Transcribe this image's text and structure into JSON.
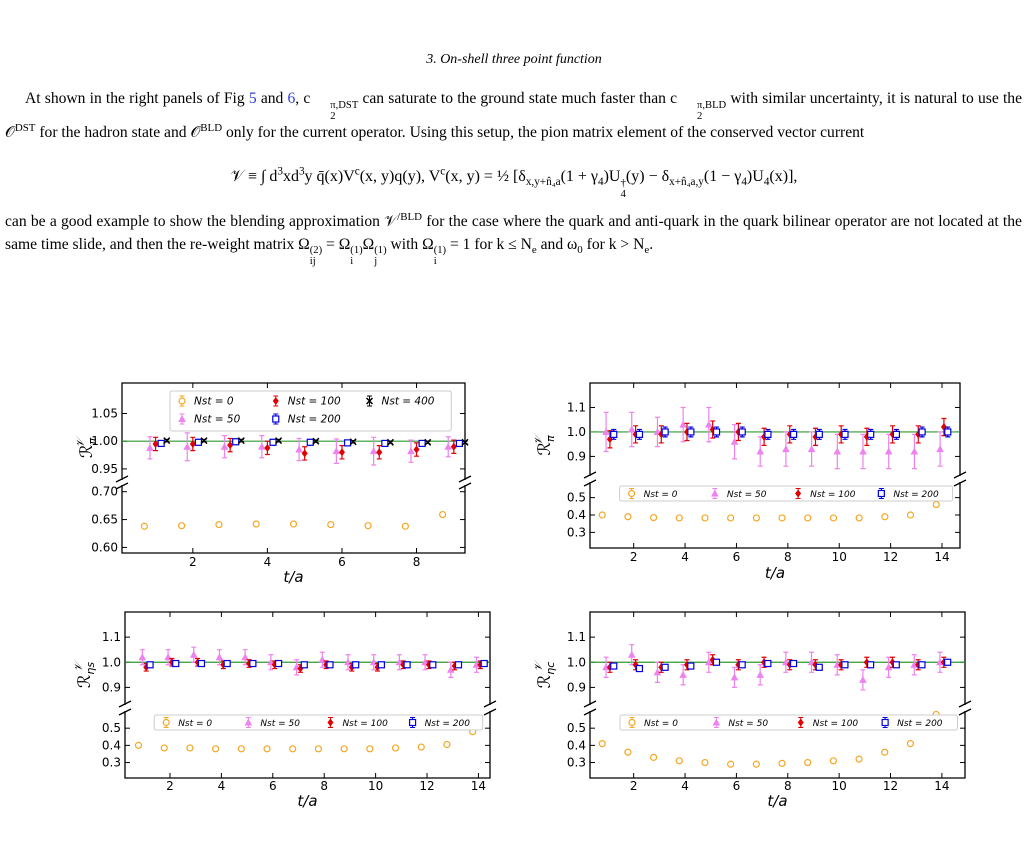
{
  "text": {
    "heading": "3.   On-shell three point function",
    "p1": [
      "At shown in the right panels of Fig ",
      "5",
      " and ",
      "6",
      ", c",
      "2",
      "π,DST",
      " can saturate to the ground state much faster than c",
      "2",
      "π,BLD",
      " with similar uncertainty, it is natural to use the 𝒪",
      "DST",
      " for the hadron state and 𝒪",
      "BLD",
      " only for the current operator. Using this setup, the pion matrix element of the conserved vector current"
    ],
    "eq": [
      "𝒱 ≡ ∫ d",
      "3",
      "xd",
      "3",
      "y q̄(x)V",
      "c",
      "(x, y)q(y),  V",
      "c",
      "(x, y) = ½ [δ",
      "x,y+n̂₄a",
      "(1 + γ",
      "4",
      ")U",
      "4",
      "†",
      "(y) − δ",
      "x+n̂₄a,y",
      "(1 − γ",
      "4",
      ")U",
      "4",
      "(x)],"
    ],
    "p2": [
      "can be a good example to show the blending approximation 𝒱",
      "/BLD",
      " for the case where the quark and anti-quark in the quark bilinear operator are not located at the same time slide, and then the re-weight matrix Ω",
      "ij",
      "(2)",
      " = Ω",
      "i",
      "(1)",
      "Ω",
      "j",
      "(1)",
      " with Ω",
      "i",
      "(1)",
      " = 1 for k ≤ N",
      "e",
      " and ω",
      "0",
      " for k > N",
      "e",
      "."
    ]
  },
  "chart_data": [
    {
      "type": "errorbar",
      "xlabel": "t/a",
      "ylabel_main": "ℛ",
      "ylabel_sub": "π",
      "ylabel_sup": "𝒱",
      "xlim": [
        0.1,
        9.3
      ],
      "xticks": [
        2,
        4,
        6,
        8
      ],
      "x": [
        1,
        2,
        3,
        4,
        5,
        6,
        7,
        8,
        9
      ],
      "panels": [
        {
          "ylim": [
            0.93,
            1.105
          ],
          "yticks": [
            {
              "value": 0.95,
              "label": "0.95"
            },
            {
              "value": 1,
              "label": "1.00"
            },
            {
              "value": 1.05,
              "label": "1.05"
            }
          ]
        },
        {
          "ylim": [
            0.59,
            0.712
          ],
          "yticks": [
            {
              "value": 0.6,
              "label": "0.60"
            },
            {
              "value": 0.65,
              "label": "0.65"
            },
            {
              "value": 0.7,
              "label": "0.70"
            }
          ]
        }
      ],
      "hline": 1,
      "hline_color": "#2e9a2e",
      "legend": "upper",
      "series": [
        {
          "name": "Nst = 0",
          "color": "#f5a623",
          "marker": "o",
          "panel": 1,
          "values": [
            0.638,
            0.639,
            0.641,
            0.642,
            0.642,
            0.641,
            0.639,
            0.638,
            0.659
          ],
          "errors": [
            0.002,
            0.002,
            0.002,
            0.002,
            0.002,
            0.002,
            0.002,
            0.002,
            0.002
          ]
        },
        {
          "name": "Nst = 50",
          "color": "#ee82ee",
          "marker": "^",
          "panel": 0,
          "values": [
            0.988,
            0.99,
            0.99,
            0.99,
            0.985,
            0.982,
            0.982,
            0.982,
            0.99
          ],
          "errors": [
            0.02,
            0.025,
            0.02,
            0.02,
            0.02,
            0.022,
            0.025,
            0.02,
            0.018
          ]
        },
        {
          "name": "Nst = 100",
          "color": "#e00000",
          "marker": "D",
          "panel": 0,
          "values": [
            0.995,
            0.995,
            0.993,
            0.988,
            0.978,
            0.98,
            0.98,
            0.985,
            0.99
          ],
          "errors": [
            0.012,
            0.012,
            0.012,
            0.012,
            0.012,
            0.012,
            0.012,
            0.012,
            0.012
          ]
        },
        {
          "name": "Nst = 200",
          "color": "#0000e0",
          "marker": "s",
          "panel": 0,
          "values": [
            0.996,
            0.998,
            0.999,
            0.998,
            0.998,
            0.997,
            0.996,
            0.996,
            0.996
          ],
          "errors": [
            0.005,
            0.005,
            0.005,
            0.005,
            0.005,
            0.005,
            0.005,
            0.005,
            0.005
          ]
        },
        {
          "name": "Nst = 400",
          "color": "#000000",
          "marker": "x",
          "panel": 0,
          "values": [
            1.001,
            1.001,
            1.001,
            1.001,
            1.0,
            0.999,
            0.998,
            0.998,
            0.998
          ],
          "errors": [
            0.002,
            0.002,
            0.002,
            0.002,
            0.002,
            0.002,
            0.002,
            0.002,
            0.002
          ]
        }
      ]
    },
    {
      "type": "errorbar",
      "xlabel": "t/a",
      "ylabel_main": "ℛ",
      "ylabel_sub": "π",
      "ylabel_sup": "𝒱",
      "xlim": [
        0.3,
        14.7
      ],
      "xticks": [
        2,
        4,
        6,
        8,
        10,
        12,
        14
      ],
      "x": [
        1,
        2,
        3,
        4,
        5,
        6,
        7,
        8,
        9,
        10,
        11,
        12,
        13,
        14
      ],
      "panels": [
        {
          "ylim": [
            0.82,
            1.2
          ],
          "yticks": [
            0.9,
            {
              "value": 1,
              "label": "1.0"
            },
            1.1
          ]
        },
        {
          "ylim": [
            0.21,
            0.59
          ],
          "yticks": [
            0.3,
            0.4,
            0.5
          ]
        }
      ],
      "hline": 1,
      "hline_color": "#2e9a2e",
      "legend": "lower",
      "series": [
        {
          "name": "Nst = 0",
          "color": "#f5a623",
          "marker": "o",
          "panel": 1,
          "values": [
            0.4,
            0.39,
            0.385,
            0.383,
            0.383,
            0.383,
            0.383,
            0.383,
            0.383,
            0.383,
            0.383,
            0.39,
            0.4,
            0.46
          ],
          "errors": [
            0.005,
            0.005,
            0.005,
            0.005,
            0.005,
            0.005,
            0.005,
            0.005,
            0.005,
            0.005,
            0.005,
            0.005,
            0.005,
            0.005
          ]
        },
        {
          "name": "Nst = 50",
          "color": "#ee82ee",
          "marker": "^",
          "panel": 0,
          "values": [
            1.0,
            1.01,
            1.0,
            1.03,
            1.03,
            0.96,
            0.92,
            0.93,
            0.93,
            0.92,
            0.92,
            0.92,
            0.92,
            0.93
          ],
          "errors": [
            0.08,
            0.07,
            0.06,
            0.07,
            0.07,
            0.07,
            0.06,
            0.07,
            0.07,
            0.07,
            0.07,
            0.07,
            0.07,
            0.07
          ]
        },
        {
          "name": "Nst = 100",
          "color": "#e00000",
          "marker": "D",
          "panel": 0,
          "values": [
            0.97,
            0.99,
            0.99,
            1.0,
            1.01,
            1.0,
            0.98,
            0.99,
            0.98,
            0.99,
            0.98,
            0.99,
            0.99,
            1.02
          ],
          "errors": [
            0.035,
            0.035,
            0.035,
            0.035,
            0.035,
            0.035,
            0.035,
            0.035,
            0.035,
            0.035,
            0.035,
            0.035,
            0.035,
            0.035
          ]
        },
        {
          "name": "Nst = 200",
          "color": "#0000e0",
          "marker": "s",
          "panel": 0,
          "values": [
            0.99,
            0.99,
            1.0,
            1.0,
            1.0,
            1.0,
            0.99,
            0.99,
            0.99,
            0.99,
            0.99,
            0.99,
            1.0,
            1.0
          ],
          "errors": [
            0.02,
            0.02,
            0.02,
            0.02,
            0.02,
            0.02,
            0.02,
            0.02,
            0.02,
            0.02,
            0.02,
            0.02,
            0.02,
            0.02
          ]
        }
      ]
    },
    {
      "type": "errorbar",
      "xlabel": "t/a",
      "ylabel_main": "ℛ",
      "ylabel_sub": "ηs",
      "ylabel_sup": "𝒱",
      "xlim": [
        0.25,
        14.45
      ],
      "xticks": [
        2,
        4,
        6,
        8,
        10,
        12,
        14
      ],
      "x": [
        1,
        2,
        3,
        4,
        5,
        6,
        7,
        8,
        9,
        10,
        11,
        12,
        13,
        14
      ],
      "panels": [
        {
          "ylim": [
            0.83,
            1.2
          ],
          "yticks": [
            0.9,
            {
              "value": 1,
              "label": "1.0"
            },
            1.1
          ]
        },
        {
          "ylim": [
            0.21,
            0.6
          ],
          "yticks": [
            0.3,
            0.4,
            0.5
          ]
        }
      ],
      "hline": 1,
      "hline_color": "#2e9a2e",
      "legend": "lower",
      "series": [
        {
          "name": "Nst = 0",
          "color": "#f5a623",
          "marker": "o",
          "panel": 1,
          "values": [
            0.4,
            0.385,
            0.385,
            0.38,
            0.38,
            0.38,
            0.38,
            0.38,
            0.38,
            0.38,
            0.385,
            0.39,
            0.405,
            0.48
          ],
          "errors": [
            0.005,
            0.005,
            0.005,
            0.005,
            0.005,
            0.005,
            0.005,
            0.005,
            0.005,
            0.005,
            0.005,
            0.005,
            0.005,
            0.005
          ]
        },
        {
          "name": "Nst = 50",
          "color": "#ee82ee",
          "marker": "^",
          "panel": 0,
          "values": [
            1.02,
            1.02,
            1.03,
            1.02,
            1.02,
            1.0,
            0.98,
            1.01,
            1.0,
            1.0,
            1.0,
            1.0,
            0.97,
            0.99
          ],
          "errors": [
            0.03,
            0.03,
            0.03,
            0.03,
            0.03,
            0.03,
            0.03,
            0.03,
            0.03,
            0.03,
            0.03,
            0.03,
            0.03,
            0.03
          ]
        },
        {
          "name": "Nst = 100",
          "color": "#e00000",
          "marker": "D",
          "panel": 0,
          "values": [
            0.98,
            1.0,
            1.0,
            0.99,
            0.995,
            0.99,
            0.975,
            0.99,
            0.98,
            0.98,
            0.99,
            0.99,
            0.985,
            0.99
          ],
          "errors": [
            0.015,
            0.015,
            0.015,
            0.015,
            0.015,
            0.015,
            0.015,
            0.015,
            0.015,
            0.015,
            0.015,
            0.015,
            0.015,
            0.015
          ]
        },
        {
          "name": "Nst = 200",
          "color": "#0000e0",
          "marker": "s",
          "panel": 0,
          "values": [
            0.99,
            0.995,
            0.995,
            0.995,
            0.995,
            0.995,
            0.99,
            0.99,
            0.99,
            0.99,
            0.99,
            0.99,
            0.99,
            0.995
          ],
          "errors": [
            0.008,
            0.008,
            0.008,
            0.008,
            0.008,
            0.008,
            0.008,
            0.008,
            0.008,
            0.008,
            0.008,
            0.008,
            0.008,
            0.008
          ]
        }
      ]
    },
    {
      "type": "errorbar",
      "xlabel": "t/a",
      "ylabel_main": "ℛ",
      "ylabel_sub": "ηc",
      "ylabel_sup": "𝒱",
      "xlim": [
        0.3,
        14.9
      ],
      "xticks": [
        2,
        4,
        6,
        8,
        10,
        12,
        14
      ],
      "x": [
        1,
        2,
        3,
        4,
        5,
        6,
        7,
        8,
        9,
        10,
        11,
        12,
        13,
        14
      ],
      "panels": [
        {
          "ylim": [
            0.83,
            1.2
          ],
          "yticks": [
            0.9,
            {
              "value": 1,
              "label": "1.0"
            },
            1.1
          ]
        },
        {
          "ylim": [
            0.21,
            0.6
          ],
          "yticks": [
            0.3,
            0.4,
            0.5
          ]
        }
      ],
      "hline": 1,
      "hline_color": "#2e9a2e",
      "legend": "lower",
      "series": [
        {
          "name": "Nst = 0",
          "color": "#f5a623",
          "marker": "o",
          "panel": 1,
          "values": [
            0.41,
            0.36,
            0.33,
            0.31,
            0.3,
            0.29,
            0.29,
            0.295,
            0.3,
            0.31,
            0.32,
            0.36,
            0.41,
            0.58
          ],
          "errors": [
            0.005,
            0.005,
            0.005,
            0.005,
            0.005,
            0.005,
            0.005,
            0.005,
            0.005,
            0.005,
            0.005,
            0.005,
            0.005,
            0.005
          ]
        },
        {
          "name": "Nst = 50",
          "color": "#ee82ee",
          "marker": "^",
          "panel": 0,
          "values": [
            0.98,
            1.03,
            0.96,
            0.95,
            1.0,
            0.94,
            0.95,
            1.0,
            1.0,
            0.99,
            0.93,
            0.98,
            0.99,
            1.0
          ],
          "errors": [
            0.04,
            0.04,
            0.04,
            0.04,
            0.04,
            0.04,
            0.04,
            0.04,
            0.04,
            0.04,
            0.04,
            0.04,
            0.04,
            0.04
          ]
        },
        {
          "name": "Nst = 100",
          "color": "#e00000",
          "marker": "D",
          "panel": 0,
          "values": [
            0.98,
            0.99,
            0.98,
            0.99,
            1.01,
            0.99,
            1.0,
            0.99,
            0.99,
            0.99,
            1.0,
            1.0,
            0.99,
            1.0
          ],
          "errors": [
            0.02,
            0.02,
            0.02,
            0.02,
            0.02,
            0.02,
            0.02,
            0.02,
            0.02,
            0.02,
            0.02,
            0.02,
            0.02,
            0.02
          ]
        },
        {
          "name": "Nst = 200",
          "color": "#0000e0",
          "marker": "s",
          "panel": 0,
          "values": [
            0.985,
            0.975,
            0.98,
            0.985,
            1.0,
            0.99,
            0.995,
            0.995,
            0.98,
            0.99,
            0.99,
            0.99,
            0.99,
            1.0
          ],
          "errors": [
            0.01,
            0.01,
            0.01,
            0.01,
            0.01,
            0.01,
            0.01,
            0.01,
            0.01,
            0.01,
            0.01,
            0.01,
            0.01,
            0.01
          ]
        }
      ]
    }
  ]
}
